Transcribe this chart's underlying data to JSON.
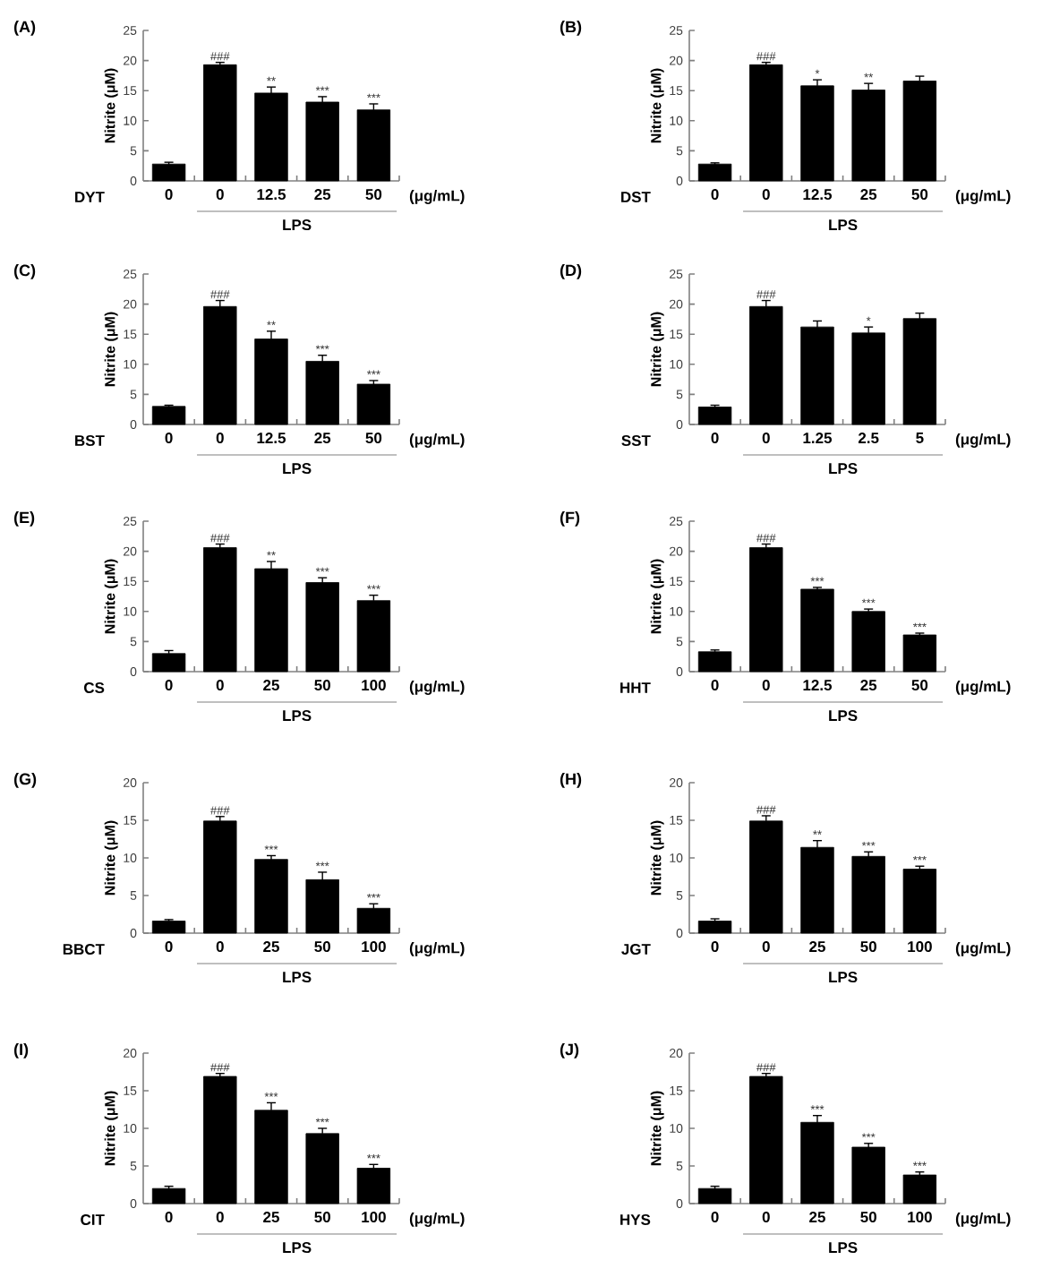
{
  "chart_data": [
    {
      "type": "bar",
      "title": "(A)",
      "ylabel": "Nitrite (μM)",
      "categories": [
        "0",
        "0",
        "12.5",
        "25",
        "50"
      ],
      "values": [
        2.8,
        19.3,
        14.6,
        13.1,
        11.8
      ],
      "errors": [
        0.3,
        0.4,
        1.0,
        0.9,
        1.0
      ],
      "value_labels": [
        null,
        "###",
        "**",
        "***",
        "***"
      ],
      "color": "#000000",
      "ylim": [
        0,
        25
      ],
      "yticks": [
        0,
        5,
        10,
        15,
        20,
        25
      ],
      "annotations": [
        "DYT",
        "(μg/mL)",
        "LPS"
      ]
    },
    {
      "type": "bar",
      "title": "(B)",
      "ylabel": "Nitrite (μM)",
      "categories": [
        "0",
        "0",
        "12.5",
        "25",
        "50"
      ],
      "values": [
        2.8,
        19.3,
        15.8,
        15.1,
        16.6
      ],
      "errors": [
        0.2,
        0.4,
        1.0,
        1.1,
        0.8
      ],
      "value_labels": [
        null,
        "###",
        "*",
        "**",
        null
      ],
      "color": "#000000",
      "ylim": [
        0,
        25
      ],
      "yticks": [
        0,
        5,
        10,
        15,
        20,
        25
      ],
      "annotations": [
        "DST",
        "(μg/mL)",
        "LPS"
      ]
    },
    {
      "type": "bar",
      "title": "(C)",
      "ylabel": "Nitrite (μM)",
      "categories": [
        "0",
        "0",
        "12.5",
        "25",
        "50"
      ],
      "values": [
        3.0,
        19.6,
        14.2,
        10.5,
        6.7
      ],
      "errors": [
        0.2,
        1.0,
        1.3,
        1.0,
        0.6
      ],
      "value_labels": [
        null,
        "###",
        "**",
        "***",
        "***"
      ],
      "color": "#000000",
      "ylim": [
        0,
        25
      ],
      "yticks": [
        0,
        5,
        10,
        15,
        20,
        25
      ],
      "annotations": [
        "BST",
        "(μg/mL)",
        "LPS"
      ]
    },
    {
      "type": "bar",
      "title": "(D)",
      "ylabel": "Nitrite (μM)",
      "categories": [
        "0",
        "0",
        "1.25",
        "2.5",
        "5"
      ],
      "values": [
        2.9,
        19.6,
        16.2,
        15.2,
        17.6
      ],
      "errors": [
        0.3,
        1.0,
        1.0,
        1.0,
        0.9
      ],
      "value_labels": [
        null,
        "###",
        null,
        "*",
        null
      ],
      "color": "#000000",
      "ylim": [
        0,
        25
      ],
      "yticks": [
        0,
        5,
        10,
        15,
        20,
        25
      ],
      "annotations": [
        "SST",
        "(μg/mL)",
        "LPS"
      ]
    },
    {
      "type": "bar",
      "title": "(E)",
      "ylabel": "Nitrite (μM)",
      "categories": [
        "0",
        "0",
        "25",
        "50",
        "100"
      ],
      "values": [
        3.0,
        20.6,
        17.1,
        14.8,
        11.8
      ],
      "errors": [
        0.5,
        0.6,
        1.2,
        0.8,
        0.9
      ],
      "value_labels": [
        null,
        "###",
        "**",
        "***",
        "***"
      ],
      "color": "#000000",
      "ylim": [
        0,
        25
      ],
      "yticks": [
        0,
        5,
        10,
        15,
        20,
        25
      ],
      "annotations": [
        "CS",
        "(μg/mL)",
        "LPS"
      ]
    },
    {
      "type": "bar",
      "title": "(F)",
      "ylabel": "Nitrite (μM)",
      "categories": [
        "0",
        "0",
        "12.5",
        "25",
        "50"
      ],
      "values": [
        3.3,
        20.6,
        13.7,
        10.0,
        6.1
      ],
      "errors": [
        0.3,
        0.6,
        0.3,
        0.4,
        0.3
      ],
      "value_labels": [
        null,
        "###",
        "***",
        "***",
        "***"
      ],
      "color": "#000000",
      "ylim": [
        0,
        25
      ],
      "yticks": [
        0,
        5,
        10,
        15,
        20,
        25
      ],
      "annotations": [
        "HHT",
        "(μg/mL)",
        "LPS"
      ]
    },
    {
      "type": "bar",
      "title": "(G)",
      "ylabel": "Nitrite (μM)",
      "categories": [
        "0",
        "0",
        "25",
        "50",
        "100"
      ],
      "values": [
        1.6,
        14.9,
        9.8,
        7.1,
        3.3
      ],
      "errors": [
        0.2,
        0.6,
        0.5,
        1.0,
        0.6
      ],
      "value_labels": [
        null,
        "###",
        "***",
        "***",
        "***"
      ],
      "color": "#000000",
      "ylim": [
        0,
        20
      ],
      "yticks": [
        0,
        5,
        10,
        15,
        20
      ],
      "annotations": [
        "BBCT",
        "(μg/mL)",
        "LPS"
      ]
    },
    {
      "type": "bar",
      "title": "(H)",
      "ylabel": "Nitrite (μM)",
      "categories": [
        "0",
        "0",
        "25",
        "50",
        "100"
      ],
      "values": [
        1.6,
        14.9,
        11.4,
        10.2,
        8.5
      ],
      "errors": [
        0.3,
        0.7,
        0.9,
        0.6,
        0.4
      ],
      "value_labels": [
        null,
        "###",
        "**",
        "***",
        "***"
      ],
      "color": "#000000",
      "ylim": [
        0,
        20
      ],
      "yticks": [
        0,
        5,
        10,
        15,
        20
      ],
      "annotations": [
        "JGT",
        "(μg/mL)",
        "LPS"
      ]
    },
    {
      "type": "bar",
      "title": "(I)",
      "ylabel": "Nitrite (μM)",
      "categories": [
        "0",
        "0",
        "25",
        "50",
        "100"
      ],
      "values": [
        2.0,
        16.9,
        12.4,
        9.3,
        4.7
      ],
      "errors": [
        0.3,
        0.4,
        1.0,
        0.7,
        0.5
      ],
      "value_labels": [
        null,
        "###",
        "***",
        "***",
        "***"
      ],
      "color": "#000000",
      "ylim": [
        0,
        20
      ],
      "yticks": [
        0,
        5,
        10,
        15,
        20
      ],
      "annotations": [
        "CIT",
        "(μg/mL)",
        "LPS"
      ]
    },
    {
      "type": "bar",
      "title": "(J)",
      "ylabel": "Nitrite (μM)",
      "categories": [
        "0",
        "0",
        "25",
        "50",
        "100"
      ],
      "values": [
        2.0,
        16.9,
        10.8,
        7.5,
        3.8
      ],
      "errors": [
        0.3,
        0.4,
        0.9,
        0.5,
        0.4
      ],
      "value_labels": [
        null,
        "###",
        "***",
        "***",
        "***"
      ],
      "color": "#000000",
      "ylim": [
        0,
        20
      ],
      "yticks": [
        0,
        5,
        10,
        15,
        20
      ],
      "annotations": [
        "HYS",
        "(μg/mL)",
        "LPS"
      ]
    }
  ]
}
